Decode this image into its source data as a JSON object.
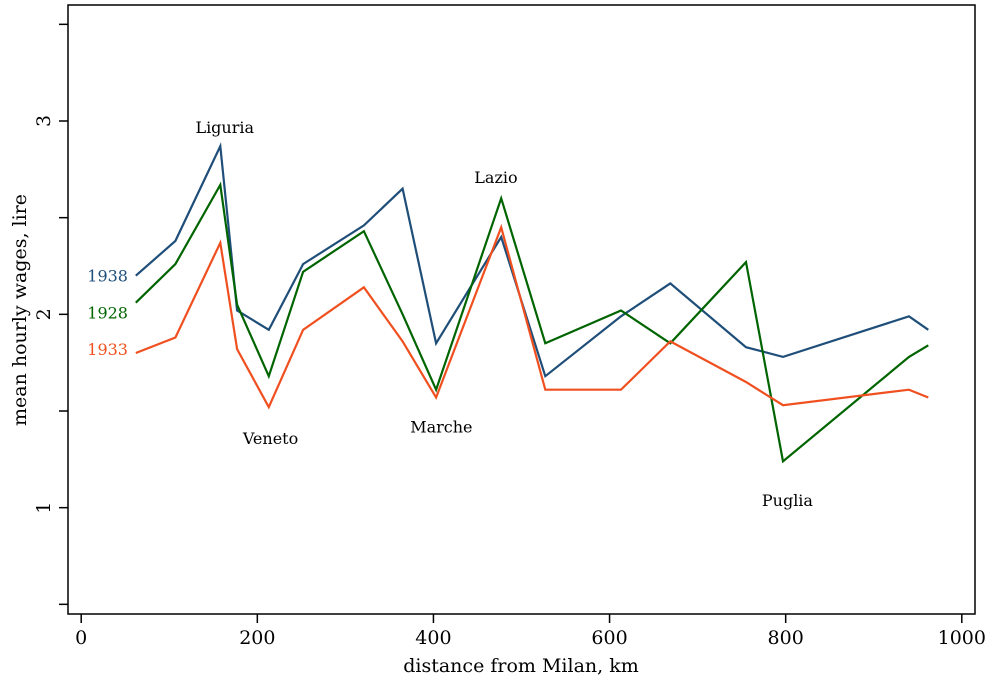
{
  "chart_data": {
    "type": "line",
    "title": "",
    "xlabel": "distance from Milan, km",
    "ylabel": "mean hourly wages, lire",
    "xlim": [
      -15,
      1015
    ],
    "ylim": [
      0.45,
      3.6
    ],
    "xticks": [
      0,
      200,
      400,
      600,
      800,
      1000
    ],
    "yticks": [
      1,
      2,
      3
    ],
    "xtick_labels": [
      "0",
      "200",
      "400",
      "600",
      "800",
      "1000"
    ],
    "ytick_labels": [
      "1",
      "2",
      "3"
    ],
    "yminor_ticks": [
      0.5,
      1.5,
      2.5,
      3.5
    ],
    "grid": false,
    "legend": "inline-left",
    "series": [
      {
        "name": "1938",
        "color": "#1f4e79",
        "x": [
          62,
          107,
          158,
          177,
          213,
          252,
          321,
          365,
          403,
          477,
          527,
          613,
          669,
          755,
          797,
          940,
          962
        ],
        "y": [
          2.2,
          2.38,
          2.87,
          2.02,
          1.92,
          2.26,
          2.46,
          2.65,
          1.85,
          2.4,
          1.68,
          1.99,
          2.16,
          1.83,
          1.78,
          1.99,
          1.92
        ]
      },
      {
        "name": "1928",
        "color": "#006400",
        "x": [
          62,
          107,
          158,
          177,
          213,
          252,
          321,
          365,
          403,
          477,
          527,
          613,
          669,
          755,
          797,
          940,
          962
        ],
        "y": [
          2.06,
          2.26,
          2.67,
          2.05,
          1.68,
          2.22,
          2.43,
          2.0,
          1.61,
          2.6,
          1.85,
          2.02,
          1.85,
          2.27,
          1.24,
          1.78,
          1.84
        ]
      },
      {
        "name": "1933",
        "color": "#f05020",
        "x": [
          62,
          107,
          158,
          177,
          213,
          252,
          321,
          365,
          403,
          477,
          527,
          613,
          669,
          755,
          797,
          940,
          962
        ],
        "y": [
          1.8,
          1.88,
          2.37,
          1.82,
          1.52,
          1.92,
          2.14,
          1.86,
          1.57,
          2.45,
          1.61,
          1.61,
          1.86,
          1.65,
          1.53,
          1.61,
          1.57
        ]
      }
    ],
    "series_labels": [
      {
        "text": "1938",
        "x": 30,
        "y": 2.2,
        "color": "#1f4e79"
      },
      {
        "text": "1928",
        "x": 30,
        "y": 2.01,
        "color": "#006400"
      },
      {
        "text": "1933",
        "x": 30,
        "y": 1.82,
        "color": "#f05020"
      }
    ],
    "annotations": [
      {
        "text": "Liguria",
        "x": 163,
        "y": 2.97
      },
      {
        "text": "Lazio",
        "x": 471,
        "y": 2.71
      },
      {
        "text": "Veneto",
        "x": 215,
        "y": 1.36
      },
      {
        "text": "Marche",
        "x": 409,
        "y": 1.42
      },
      {
        "text": "Puglia",
        "x": 802,
        "y": 1.04
      }
    ]
  }
}
